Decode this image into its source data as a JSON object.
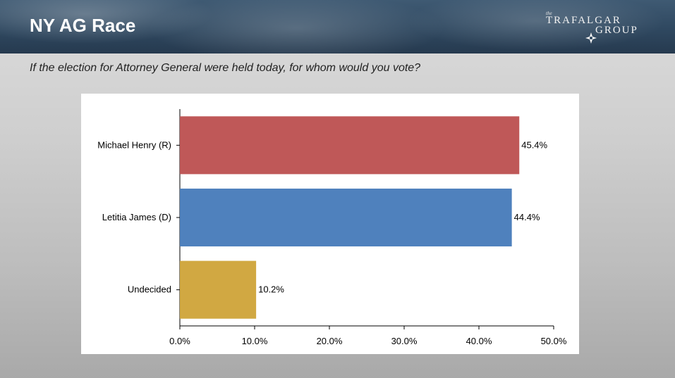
{
  "header": {
    "title": "NY AG Race",
    "logo_text": {
      "small": "the",
      "line1": "TRAFALGAR",
      "line2": "GROUP"
    }
  },
  "question": "If the election for Attorney General were held today, for whom would you vote?",
  "colors": {
    "header_bg": "#2f4860",
    "republican": "#bf5858",
    "democrat": "#4f81bd",
    "undecided": "#d1a842"
  },
  "chart_data": {
    "type": "bar",
    "orientation": "horizontal",
    "categories": [
      "Michael Henry (R)",
      "Letitia James (D)",
      "Undecided"
    ],
    "values": [
      45.4,
      44.4,
      10.2
    ],
    "value_labels": [
      "45.4%",
      "44.4%",
      "10.2%"
    ],
    "colors": [
      "#bf5858",
      "#4f81bd",
      "#d1a842"
    ],
    "xlim": [
      0,
      50
    ],
    "x_ticks": [
      0,
      10,
      20,
      30,
      40,
      50
    ],
    "x_tick_labels": [
      "0.0%",
      "10.0%",
      "20.0%",
      "30.0%",
      "40.0%",
      "50.0%"
    ],
    "grid": false,
    "legend": "none"
  }
}
